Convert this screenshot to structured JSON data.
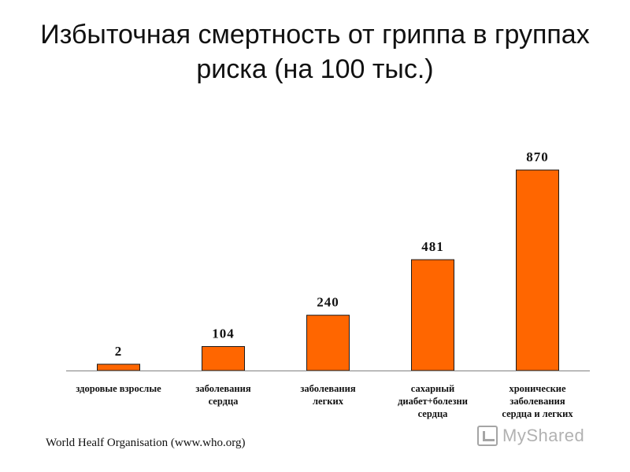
{
  "title": {
    "line1": "Избыточная смертность от гриппа в группах",
    "line2": "риска (на 100 тыс.)"
  },
  "source": "World Healf  Organisation  (www.who.org)",
  "watermark": "MyShared",
  "colors": {
    "bar": "#FF6600",
    "bar_stroke": "#1a1a1a",
    "axis": "#808080"
  },
  "chart_data": {
    "type": "bar",
    "title": "Избыточная смертность от гриппа в группах риска (на 100 тыс.)",
    "categories": [
      [
        "здоровые взрослые"
      ],
      [
        "заболевания",
        "сердца"
      ],
      [
        "заболевания",
        "легких"
      ],
      [
        "сахарный",
        "диабет+болезни",
        "сердца"
      ],
      [
        "хронические",
        "заболевания",
        "сердца и легких"
      ]
    ],
    "values": [
      2,
      104,
      240,
      481,
      870
    ],
    "data_labels": [
      "2",
      "104",
      "240",
      "481",
      "870"
    ],
    "ylim": [
      0,
      1000
    ],
    "grid": false,
    "legend": "none"
  }
}
